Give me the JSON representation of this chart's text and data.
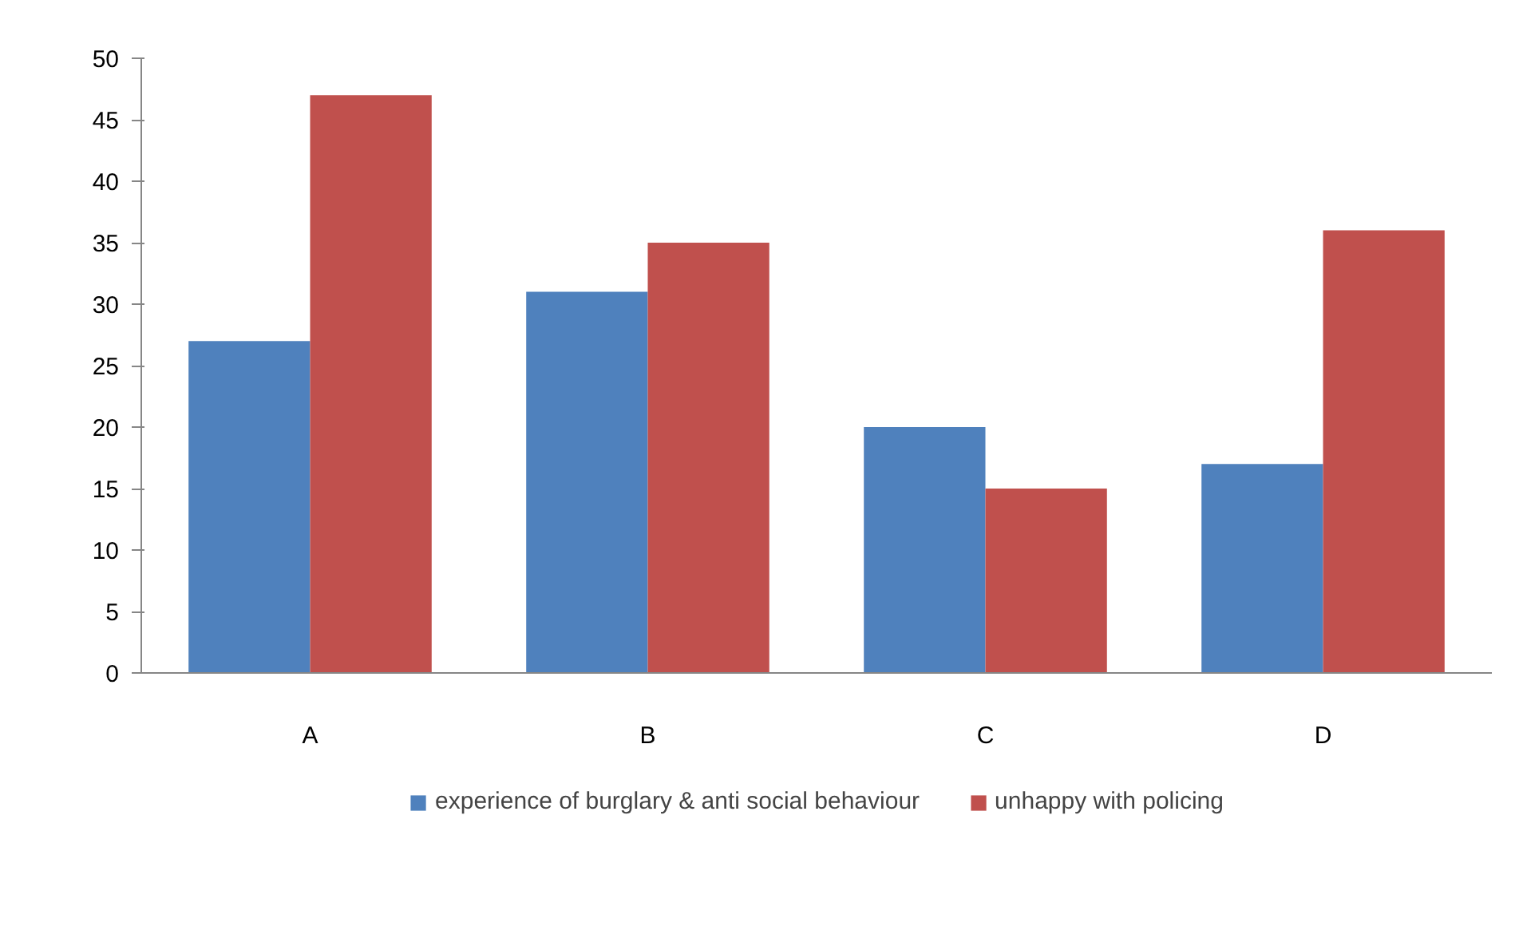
{
  "chart_data": {
    "type": "bar",
    "categories": [
      "A",
      "B",
      "C",
      "D"
    ],
    "series": [
      {
        "name": "experience of burglary & anti social behaviour",
        "color": "#4f81bd",
        "values": [
          27,
          31,
          20,
          17
        ]
      },
      {
        "name": "unhappy with policing",
        "color": "#c0504d",
        "values": [
          47,
          35,
          15,
          36
        ]
      }
    ],
    "ylim": [
      0,
      50
    ],
    "yticks": [
      0,
      5,
      10,
      15,
      20,
      25,
      30,
      35,
      40,
      45,
      50
    ],
    "grid": false,
    "legend": "bottom"
  }
}
